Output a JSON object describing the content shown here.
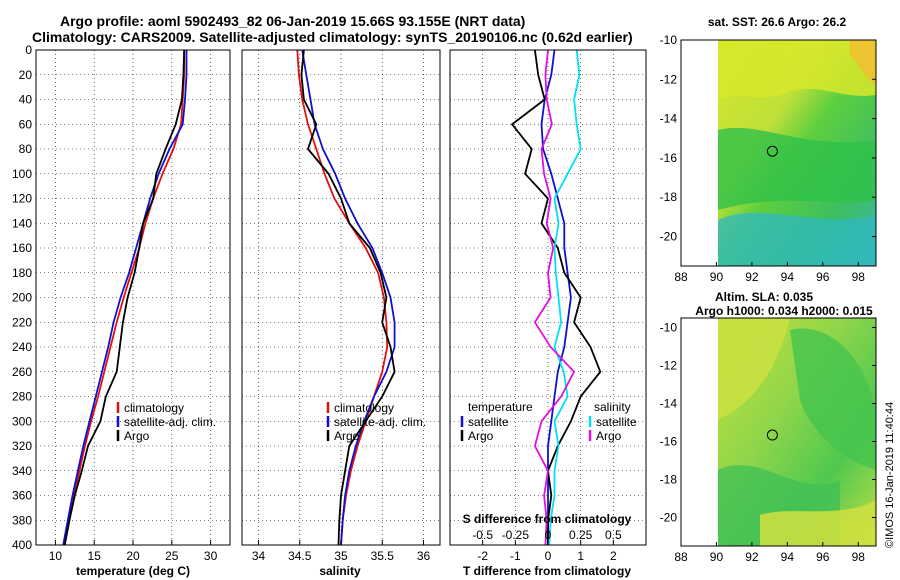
{
  "header": {
    "title_line1": "Argo profile: aoml 5902493_82 06-Jan-2019 15.66S 93.155E (NRT data)",
    "title_line2": "Climatology: CARS2009. Satellite-adjusted climatology: synTS_20190106.nc (0.62d earlier)"
  },
  "colors": {
    "climatology": "#e01010",
    "satellite": "#1010d0",
    "argo": "#000000",
    "satellite_salinity": "#00e0f0",
    "argo_salinity": "#e010e0"
  },
  "depth_axis": {
    "ylim": [
      0,
      400
    ],
    "ticks": [
      0,
      20,
      40,
      60,
      80,
      100,
      120,
      140,
      160,
      180,
      200,
      220,
      240,
      260,
      280,
      300,
      320,
      340,
      360,
      380,
      400
    ]
  },
  "chart_data": [
    {
      "type": "line",
      "id": "temperature",
      "xlabel": "temperature (deg C)",
      "xlim": [
        7.5,
        32.5
      ],
      "xticks": [
        10,
        15,
        20,
        25,
        30
      ],
      "legend": [
        "climatology",
        "satellite-adj. clim.",
        "Argo"
      ],
      "series": [
        {
          "name": "climatology",
          "color": "#e01010",
          "points": [
            [
              26.6,
              0
            ],
            [
              26.6,
              20
            ],
            [
              26.4,
              40
            ],
            [
              26.2,
              60
            ],
            [
              25.2,
              80
            ],
            [
              23.8,
              100
            ],
            [
              22.6,
              120
            ],
            [
              21.6,
              140
            ],
            [
              20.8,
              160
            ],
            [
              19.8,
              180
            ],
            [
              18.8,
              200
            ],
            [
              17.9,
              220
            ],
            [
              17.1,
              240
            ],
            [
              16.3,
              260
            ],
            [
              15.5,
              280
            ],
            [
              14.6,
              300
            ],
            [
              13.8,
              320
            ],
            [
              13.1,
              340
            ],
            [
              12.4,
              360
            ],
            [
              11.8,
              380
            ],
            [
              11.2,
              400
            ]
          ]
        },
        {
          "name": "satellite-adj. clim.",
          "color": "#1010d0",
          "points": [
            [
              26.9,
              0
            ],
            [
              26.9,
              20
            ],
            [
              26.7,
              40
            ],
            [
              26.4,
              60
            ],
            [
              24.7,
              80
            ],
            [
              23.3,
              100
            ],
            [
              22.2,
              120
            ],
            [
              21.3,
              140
            ],
            [
              20.4,
              160
            ],
            [
              19.5,
              180
            ],
            [
              18.4,
              200
            ],
            [
              17.5,
              220
            ],
            [
              16.8,
              240
            ],
            [
              16.0,
              260
            ],
            [
              15.2,
              280
            ],
            [
              14.4,
              300
            ],
            [
              13.6,
              320
            ],
            [
              12.9,
              340
            ],
            [
              12.2,
              360
            ],
            [
              11.6,
              380
            ],
            [
              11.0,
              400
            ]
          ]
        },
        {
          "name": "Argo",
          "color": "#000000",
          "points": [
            [
              26.6,
              0
            ],
            [
              26.5,
              20
            ],
            [
              26.3,
              40
            ],
            [
              25.5,
              60
            ],
            [
              24.2,
              80
            ],
            [
              23.0,
              100
            ],
            [
              22.6,
              120
            ],
            [
              21.3,
              140
            ],
            [
              20.8,
              160
            ],
            [
              20.2,
              180
            ],
            [
              19.3,
              200
            ],
            [
              18.7,
              220
            ],
            [
              18.3,
              240
            ],
            [
              17.9,
              260
            ],
            [
              16.5,
              280
            ],
            [
              15.8,
              300
            ],
            [
              14.2,
              320
            ],
            [
              13.4,
              340
            ],
            [
              12.5,
              360
            ],
            [
              11.8,
              380
            ],
            [
              11.2,
              400
            ]
          ]
        }
      ]
    },
    {
      "type": "line",
      "id": "salinity",
      "xlabel": "salinity",
      "xlim": [
        33.8,
        36.2
      ],
      "xticks": [
        34,
        34.5,
        35,
        35.5,
        36
      ],
      "legend": [
        "climatology",
        "satellite-adj. clim.",
        "Argo"
      ],
      "series": [
        {
          "name": "climatology",
          "color": "#e01010",
          "points": [
            [
              34.47,
              0
            ],
            [
              34.49,
              20
            ],
            [
              34.53,
              40
            ],
            [
              34.6,
              60
            ],
            [
              34.7,
              80
            ],
            [
              34.8,
              100
            ],
            [
              34.92,
              120
            ],
            [
              35.1,
              140
            ],
            [
              35.3,
              160
            ],
            [
              35.45,
              180
            ],
            [
              35.52,
              200
            ],
            [
              35.55,
              220
            ],
            [
              35.56,
              240
            ],
            [
              35.5,
              260
            ],
            [
              35.4,
              280
            ],
            [
              35.3,
              300
            ],
            [
              35.2,
              320
            ],
            [
              35.12,
              340
            ],
            [
              35.06,
              360
            ],
            [
              35.02,
              380
            ],
            [
              35.0,
              400
            ]
          ]
        },
        {
          "name": "satellite-adj. clim.",
          "color": "#1010d0",
          "points": [
            [
              34.53,
              0
            ],
            [
              34.58,
              20
            ],
            [
              34.63,
              40
            ],
            [
              34.68,
              60
            ],
            [
              34.78,
              80
            ],
            [
              34.93,
              100
            ],
            [
              35.05,
              120
            ],
            [
              35.2,
              140
            ],
            [
              35.38,
              160
            ],
            [
              35.5,
              180
            ],
            [
              35.6,
              200
            ],
            [
              35.65,
              220
            ],
            [
              35.65,
              240
            ],
            [
              35.55,
              260
            ],
            [
              35.4,
              280
            ],
            [
              35.28,
              300
            ],
            [
              35.18,
              320
            ],
            [
              35.1,
              340
            ],
            [
              35.05,
              360
            ],
            [
              35.02,
              380
            ],
            [
              35.0,
              400
            ]
          ]
        },
        {
          "name": "Argo",
          "color": "#000000",
          "points": [
            [
              34.55,
              0
            ],
            [
              34.52,
              20
            ],
            [
              34.55,
              40
            ],
            [
              34.7,
              60
            ],
            [
              34.6,
              80
            ],
            [
              34.85,
              100
            ],
            [
              35.0,
              120
            ],
            [
              35.1,
              140
            ],
            [
              35.35,
              160
            ],
            [
              35.48,
              180
            ],
            [
              35.55,
              200
            ],
            [
              35.5,
              220
            ],
            [
              35.6,
              240
            ],
            [
              35.65,
              260
            ],
            [
              35.5,
              280
            ],
            [
              35.3,
              300
            ],
            [
              35.1,
              320
            ],
            [
              35.05,
              340
            ],
            [
              35.0,
              360
            ],
            [
              34.98,
              380
            ],
            [
              34.97,
              400
            ]
          ]
        }
      ]
    },
    {
      "type": "line",
      "id": "difference",
      "xlabel": "T difference from climatology",
      "xlabel_top": "S difference from climatology",
      "xlim": [
        -3,
        3
      ],
      "xticks": [
        -2,
        -1,
        0,
        1,
        2
      ],
      "xlim_top": [
        -0.75,
        0.75
      ],
      "xticks_top": [
        -0.5,
        -0.25,
        0,
        0.25,
        0.5
      ],
      "legend_titles": [
        "temperature",
        "salinity"
      ],
      "legend": [
        "satellite",
        "Argo",
        "satellite",
        "Argo"
      ],
      "series": [
        {
          "name": "temperature satellite",
          "color": "#1010d0",
          "axis": "T",
          "points": [
            [
              0.2,
              0
            ],
            [
              0.1,
              20
            ],
            [
              -0.1,
              40
            ],
            [
              -0.2,
              60
            ],
            [
              -0.15,
              80
            ],
            [
              0.1,
              100
            ],
            [
              0.3,
              120
            ],
            [
              0.5,
              140
            ],
            [
              0.5,
              160
            ],
            [
              0.6,
              180
            ],
            [
              0.7,
              200
            ],
            [
              0.6,
              220
            ],
            [
              0.5,
              240
            ],
            [
              0.3,
              260
            ],
            [
              0.2,
              280
            ],
            [
              0.1,
              300
            ],
            [
              0.0,
              320
            ],
            [
              0.0,
              340
            ],
            [
              0.0,
              360
            ],
            [
              0.0,
              380
            ],
            [
              0.0,
              400
            ]
          ]
        },
        {
          "name": "temperature Argo",
          "color": "#000000",
          "axis": "T",
          "points": [
            [
              -0.4,
              0
            ],
            [
              -0.3,
              20
            ],
            [
              -0.1,
              40
            ],
            [
              -1.1,
              60
            ],
            [
              -0.5,
              80
            ],
            [
              -0.7,
              100
            ],
            [
              0.0,
              120
            ],
            [
              -0.2,
              140
            ],
            [
              0.3,
              160
            ],
            [
              0.5,
              180
            ],
            [
              1.0,
              200
            ],
            [
              0.8,
              220
            ],
            [
              1.3,
              240
            ],
            [
              1.6,
              260
            ],
            [
              1.0,
              280
            ],
            [
              0.7,
              300
            ],
            [
              0.3,
              320
            ],
            [
              0.0,
              340
            ],
            [
              0.1,
              360
            ],
            [
              0.0,
              380
            ],
            [
              0.0,
              400
            ]
          ]
        },
        {
          "name": "salinity satellite",
          "color": "#00e0f0",
          "axis": "S",
          "points": [
            [
              0.22,
              0
            ],
            [
              0.24,
              20
            ],
            [
              0.2,
              40
            ],
            [
              0.22,
              60
            ],
            [
              0.25,
              80
            ],
            [
              0.15,
              100
            ],
            [
              0.05,
              120
            ],
            [
              0.08,
              140
            ],
            [
              0.05,
              160
            ],
            [
              0.06,
              180
            ],
            [
              0.08,
              200
            ],
            [
              0.1,
              220
            ],
            [
              0.05,
              240
            ],
            [
              0.12,
              260
            ],
            [
              0.15,
              280
            ],
            [
              0.05,
              300
            ],
            [
              0.08,
              320
            ],
            [
              0.05,
              340
            ],
            [
              0.05,
              360
            ],
            [
              0.02,
              380
            ],
            [
              0.01,
              400
            ]
          ]
        },
        {
          "name": "salinity Argo",
          "color": "#e010e0",
          "axis": "S",
          "points": [
            [
              0.0,
              0
            ],
            [
              -0.02,
              20
            ],
            [
              -0.01,
              40
            ],
            [
              0.03,
              60
            ],
            [
              -0.05,
              80
            ],
            [
              -0.03,
              100
            ],
            [
              0.02,
              120
            ],
            [
              -0.01,
              140
            ],
            [
              0.04,
              160
            ],
            [
              0.0,
              180
            ],
            [
              0.02,
              200
            ],
            [
              -0.1,
              220
            ],
            [
              0.02,
              240
            ],
            [
              0.2,
              260
            ],
            [
              0.1,
              280
            ],
            [
              -0.05,
              300
            ],
            [
              -0.1,
              320
            ],
            [
              0.0,
              340
            ],
            [
              -0.03,
              360
            ],
            [
              -0.01,
              380
            ],
            [
              -0.02,
              400
            ]
          ]
        }
      ]
    },
    {
      "type": "heatmap",
      "id": "sst_map",
      "title": "sat. SST: 26.6 Argo: 26.2",
      "xlim": [
        88,
        99
      ],
      "ylim": [
        -21.5,
        -10
      ],
      "xticks": [
        88,
        90,
        92,
        94,
        96,
        98
      ],
      "yticks": [
        -10,
        -12,
        -14,
        -16,
        -18,
        -20
      ],
      "data_xlim": [
        90,
        99
      ],
      "marker": {
        "lon": 93.155,
        "lat": -15.66
      }
    },
    {
      "type": "heatmap",
      "id": "sla_map",
      "title": "Altim. SLA: 0.035",
      "subtitle": "Argo h1000: 0.034 h2000: 0.015",
      "xlim": [
        88,
        99
      ],
      "ylim": [
        -21.5,
        -9.5
      ],
      "xticks": [
        88,
        90,
        92,
        94,
        96,
        98
      ],
      "yticks": [
        -10,
        -12,
        -14,
        -16,
        -18,
        -20
      ],
      "data_xlim": [
        90,
        99
      ],
      "marker": {
        "lon": 93.155,
        "lat": -15.66
      }
    }
  ],
  "watermark": "©IMOS 16-Jan-2019 11:40:44"
}
